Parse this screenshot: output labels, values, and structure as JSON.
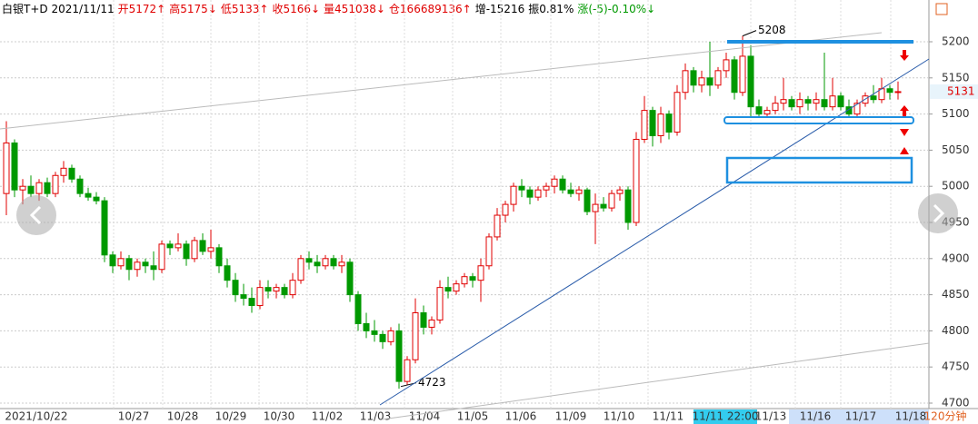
{
  "chart_data": {
    "type": "candlestick",
    "header": [
      {
        "text": "白银T+D 2021/11/11",
        "color": "#000"
      },
      {
        "text": "开5172↑",
        "color": "#e00000"
      },
      {
        "text": "高5175↓",
        "color": "#e00000"
      },
      {
        "text": "低5133↑",
        "color": "#e00000"
      },
      {
        "text": "收5166↓",
        "color": "#e00000"
      },
      {
        "text": "量451038↓",
        "color": "#e00000"
      },
      {
        "text": "仓166689136↑",
        "color": "#e00000"
      },
      {
        "text": "增-15216",
        "color": "#000"
      },
      {
        "text": "振0.81%",
        "color": "#000"
      },
      {
        "text": "涨(-5)-0.10%↓",
        "color": "#009900"
      }
    ],
    "x_labels": [
      "2021/10/22",
      "10/27",
      "10/28",
      "10/29",
      "10/30",
      "11/02",
      "11/03",
      "11/04",
      "11/05",
      "11/06",
      "11/09",
      "11/10",
      "11/11",
      "11/11 22:00",
      "11/13",
      "11/16",
      "11/17",
      "11/18"
    ],
    "period": "120分钟",
    "last_price": "5131",
    "annotations": [
      {
        "text": "5208",
        "value": 5208
      },
      {
        "text": "4723",
        "value": 4723
      }
    ],
    "up_color": "#e00000",
    "down_color": "#009900",
    "ylim": [
      4700,
      5200
    ],
    "yticks": [
      4700,
      4750,
      4800,
      4850,
      4900,
      4950,
      5000,
      5050,
      5100,
      5150,
      5200
    ],
    "grid": true,
    "candles": [
      [
        4990,
        5090,
        4960,
        5060
      ],
      [
        5060,
        5065,
        4985,
        4995
      ],
      [
        4995,
        5010,
        4975,
        5000
      ],
      [
        5000,
        5015,
        4985,
        4990
      ],
      [
        4990,
        5010,
        4980,
        5005
      ],
      [
        5005,
        5012,
        4985,
        4990
      ],
      [
        4990,
        5020,
        4985,
        5015
      ],
      [
        5015,
        5035,
        5005,
        5025
      ],
      [
        5025,
        5030,
        5005,
        5010
      ],
      [
        5010,
        5015,
        4985,
        4990
      ],
      [
        4990,
        4998,
        4980,
        4985
      ],
      [
        4985,
        4992,
        4975,
        4980
      ],
      [
        4980,
        4985,
        4895,
        4905
      ],
      [
        4905,
        4910,
        4880,
        4890
      ],
      [
        4890,
        4910,
        4885,
        4900
      ],
      [
        4900,
        4905,
        4870,
        4885
      ],
      [
        4885,
        4900,
        4875,
        4895
      ],
      [
        4895,
        4900,
        4880,
        4890
      ],
      [
        4890,
        4910,
        4870,
        4885
      ],
      [
        4885,
        4925,
        4880,
        4920
      ],
      [
        4920,
        4925,
        4905,
        4915
      ],
      [
        4915,
        4935,
        4910,
        4920
      ],
      [
        4920,
        4925,
        4890,
        4900
      ],
      [
        4900,
        4930,
        4895,
        4925
      ],
      [
        4925,
        4935,
        4905,
        4910
      ],
      [
        4910,
        4940,
        4900,
        4915
      ],
      [
        4915,
        4920,
        4880,
        4890
      ],
      [
        4890,
        4900,
        4860,
        4870
      ],
      [
        4870,
        4880,
        4840,
        4850
      ],
      [
        4850,
        4865,
        4835,
        4845
      ],
      [
        4845,
        4860,
        4825,
        4835
      ],
      [
        4835,
        4870,
        4830,
        4860
      ],
      [
        4860,
        4870,
        4845,
        4855
      ],
      [
        4855,
        4865,
        4845,
        4860
      ],
      [
        4860,
        4865,
        4845,
        4850
      ],
      [
        4850,
        4880,
        4845,
        4870
      ],
      [
        4870,
        4905,
        4865,
        4900
      ],
      [
        4900,
        4910,
        4885,
        4895
      ],
      [
        4895,
        4905,
        4880,
        4890
      ],
      [
        4890,
        4905,
        4885,
        4900
      ],
      [
        4900,
        4905,
        4885,
        4890
      ],
      [
        4890,
        4905,
        4880,
        4895
      ],
      [
        4895,
        4900,
        4840,
        4850
      ],
      [
        4850,
        4855,
        4800,
        4810
      ],
      [
        4810,
        4825,
        4790,
        4800
      ],
      [
        4800,
        4815,
        4785,
        4795
      ],
      [
        4795,
        4800,
        4775,
        4785
      ],
      [
        4785,
        4805,
        4780,
        4800
      ],
      [
        4800,
        4810,
        4720,
        4730
      ],
      [
        4730,
        4765,
        4725,
        4760
      ],
      [
        4760,
        4845,
        4755,
        4825
      ],
      [
        4825,
        4835,
        4795,
        4805
      ],
      [
        4805,
        4820,
        4795,
        4815
      ],
      [
        4815,
        4870,
        4810,
        4860
      ],
      [
        4860,
        4875,
        4845,
        4855
      ],
      [
        4855,
        4870,
        4850,
        4865
      ],
      [
        4865,
        4880,
        4860,
        4875
      ],
      [
        4875,
        4880,
        4860,
        4870
      ],
      [
        4870,
        4900,
        4840,
        4890
      ],
      [
        4890,
        4935,
        4885,
        4930
      ],
      [
        4930,
        4970,
        4925,
        4960
      ],
      [
        4960,
        4980,
        4950,
        4975
      ],
      [
        4975,
        5005,
        4965,
        5000
      ],
      [
        5000,
        5010,
        4985,
        4995
      ],
      [
        4995,
        5000,
        4975,
        4985
      ],
      [
        4985,
        5000,
        4980,
        4995
      ],
      [
        4995,
        5005,
        4985,
        5000
      ],
      [
        5000,
        5015,
        4990,
        5010
      ],
      [
        5010,
        5015,
        4990,
        4995
      ],
      [
        4995,
        5005,
        4985,
        4990
      ],
      [
        4990,
        5000,
        4980,
        4995
      ],
      [
        4995,
        4998,
        4960,
        4965
      ],
      [
        4965,
        4990,
        4920,
        4975
      ],
      [
        4975,
        4985,
        4965,
        4970
      ],
      [
        4970,
        4995,
        4965,
        4990
      ],
      [
        4990,
        5000,
        4980,
        4995
      ],
      [
        4995,
        5000,
        4940,
        4950
      ],
      [
        4950,
        5075,
        4945,
        5065
      ],
      [
        5065,
        5125,
        5060,
        5105
      ],
      [
        5105,
        5110,
        5055,
        5070
      ],
      [
        5070,
        5110,
        5060,
        5100
      ],
      [
        5100,
        5105,
        5065,
        5075
      ],
      [
        5075,
        5140,
        5070,
        5130
      ],
      [
        5130,
        5170,
        5120,
        5160
      ],
      [
        5160,
        5165,
        5130,
        5140
      ],
      [
        5140,
        5160,
        5130,
        5150
      ],
      [
        5150,
        5200,
        5125,
        5140
      ],
      [
        5140,
        5165,
        5135,
        5160
      ],
      [
        5160,
        5185,
        5150,
        5175
      ],
      [
        5175,
        5180,
        5120,
        5130
      ],
      [
        5130,
        5208,
        5125,
        5180
      ],
      [
        5180,
        5195,
        5095,
        5110
      ],
      [
        5110,
        5120,
        5095,
        5100
      ],
      [
        5100,
        5110,
        5095,
        5105
      ],
      [
        5105,
        5125,
        5100,
        5115
      ],
      [
        5115,
        5150,
        5105,
        5120
      ],
      [
        5120,
        5125,
        5105,
        5110
      ],
      [
        5110,
        5130,
        5100,
        5120
      ],
      [
        5120,
        5125,
        5105,
        5115
      ],
      [
        5115,
        5130,
        5105,
        5120
      ],
      [
        5120,
        5185,
        5105,
        5110
      ],
      [
        5110,
        5150,
        5105,
        5125
      ],
      [
        5125,
        5130,
        5105,
        5110
      ],
      [
        5110,
        5120,
        5095,
        5100
      ],
      [
        5100,
        5120,
        5095,
        5115
      ],
      [
        5115,
        5130,
        5110,
        5125
      ],
      [
        5125,
        5140,
        5115,
        5120
      ],
      [
        5120,
        5150,
        5115,
        5135
      ],
      [
        5135,
        5140,
        5120,
        5130
      ],
      [
        5130,
        5145,
        5120,
        5131
      ]
    ]
  }
}
